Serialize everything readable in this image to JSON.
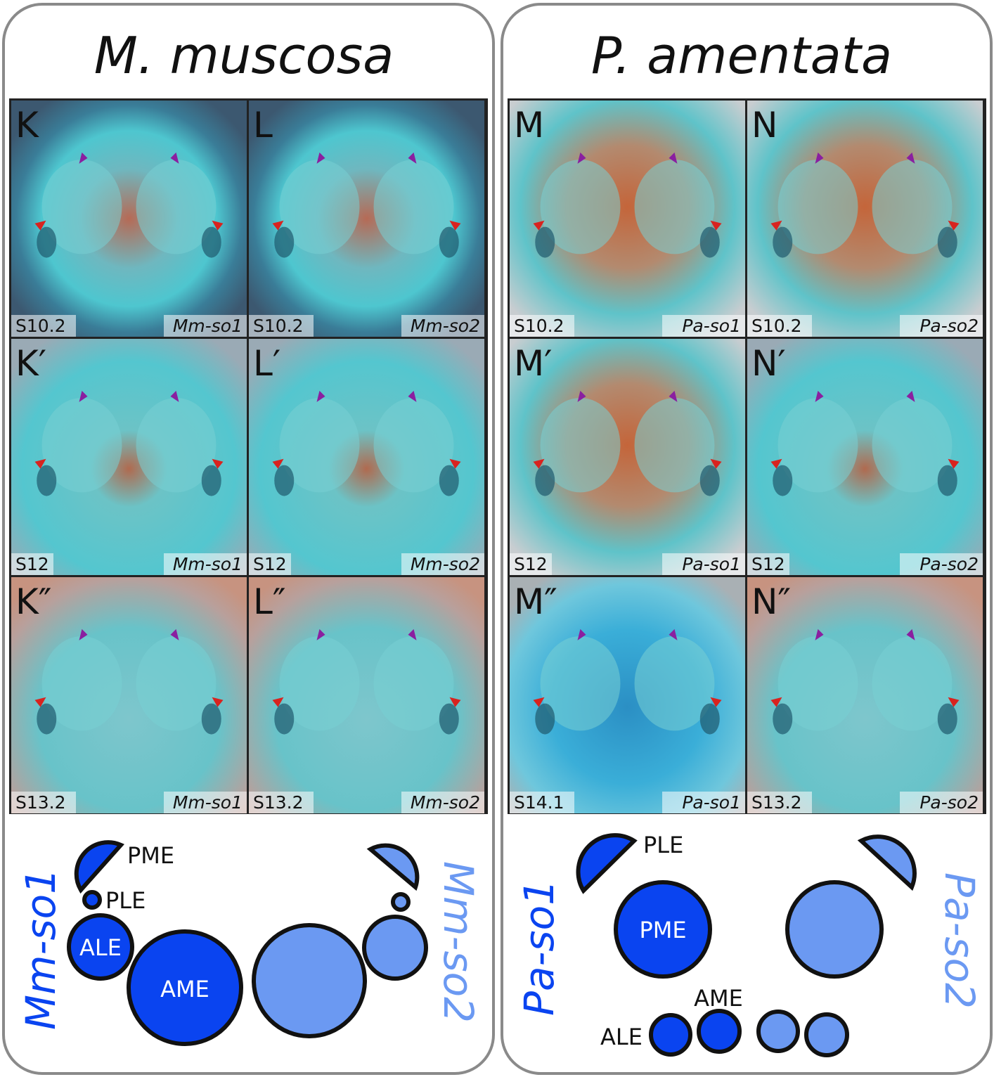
{
  "left": {
    "title": "M. muscosa",
    "panels": [
      {
        "letter": "K",
        "stage": "S10.2",
        "gene": "Mm-so1",
        "tone": "dark"
      },
      {
        "letter": "L",
        "stage": "S10.2",
        "gene": "Mm-so2",
        "tone": "dark"
      },
      {
        "letter": "K′",
        "stage": "S12",
        "gene": "Mm-so1",
        "tone": "light"
      },
      {
        "letter": "L′",
        "stage": "S12",
        "gene": "Mm-so2",
        "tone": "light"
      },
      {
        "letter": "K″",
        "stage": "S13.2",
        "gene": "Mm-so1",
        "tone": "pink"
      },
      {
        "letter": "L″",
        "stage": "S13.2",
        "gene": "Mm-so2",
        "tone": "pink"
      }
    ],
    "diagram": {
      "gene1": "Mm-so1",
      "gene2": "Mm-so2",
      "labels": {
        "pme": "PME",
        "ple": "PLE",
        "ale": "ALE",
        "ame": "AME"
      }
    }
  },
  "right": {
    "title": "P. amentata",
    "panels": [
      {
        "letter": "M",
        "stage": "S10.2",
        "gene": "Pa-so1",
        "tone": "orange"
      },
      {
        "letter": "N",
        "stage": "S10.2",
        "gene": "Pa-so2",
        "tone": "orange"
      },
      {
        "letter": "M′",
        "stage": "S12",
        "gene": "Pa-so1",
        "tone": "orange"
      },
      {
        "letter": "N′",
        "stage": "S12",
        "gene": "Pa-so2",
        "tone": "light"
      },
      {
        "letter": "M″",
        "stage": "S14.1",
        "gene": "Pa-so1",
        "tone": "blue"
      },
      {
        "letter": "N″",
        "stage": "S13.2",
        "gene": "Pa-so2",
        "tone": "pink"
      }
    ],
    "diagram": {
      "gene1": "Pa-so1",
      "gene2": "Pa-so2",
      "labels": {
        "ple": "PLE",
        "pme": "PME",
        "ame": "AME",
        "ale": "ALE"
      }
    }
  },
  "colors": {
    "so1": "#0a44f0",
    "so2": "#6b99f2",
    "frame": "#8a8a8a"
  }
}
